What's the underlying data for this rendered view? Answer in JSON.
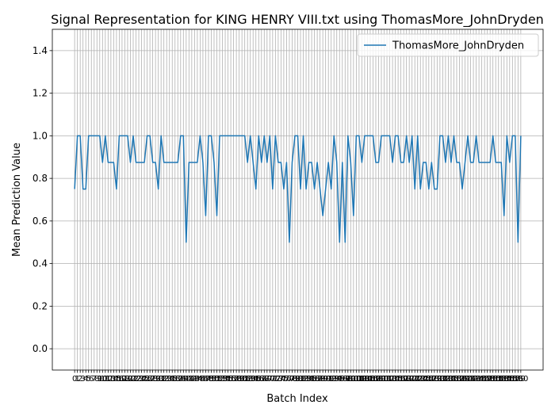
{
  "chart_data": {
    "type": "line",
    "title": "Signal Representation for KING HENRY VIII.txt using ThomasMore_JohnDryden",
    "xlabel": "Batch Index",
    "ylabel": "Mean Prediction Value",
    "x": [
      0,
      1,
      2,
      3,
      4,
      5,
      6,
      7,
      8,
      9,
      10,
      11,
      12,
      13,
      14,
      15,
      16,
      17,
      18,
      19,
      20,
      21,
      22,
      23,
      24,
      25,
      26,
      27,
      28,
      29,
      30,
      31,
      32,
      33,
      34,
      35,
      36,
      37,
      38,
      39,
      40,
      41,
      42,
      43,
      44,
      45,
      46,
      47,
      48,
      49,
      50,
      51,
      52,
      53,
      54,
      55,
      56,
      57,
      58,
      59,
      60,
      61,
      62,
      63,
      64,
      65,
      66,
      67,
      68,
      69,
      70,
      71,
      72,
      73,
      74,
      75,
      76,
      77,
      78,
      79,
      80,
      81,
      82,
      83,
      84,
      85,
      86,
      87,
      88,
      89,
      90,
      91,
      92,
      93,
      94,
      95,
      96,
      97,
      98,
      99,
      100,
      101,
      102,
      103,
      104,
      105,
      106,
      107,
      108,
      109,
      110,
      111,
      112,
      113,
      114,
      115,
      116,
      117,
      118,
      119,
      120,
      121,
      122,
      123,
      124,
      125,
      126,
      127,
      128,
      129,
      130,
      131,
      132,
      133,
      134,
      135,
      136,
      137,
      138,
      139,
      140,
      141,
      142,
      143,
      144,
      145,
      146,
      147,
      148,
      149,
      150,
      151,
      152,
      153,
      154,
      155,
      156,
      157,
      158,
      159,
      160
    ],
    "xticks": [
      0,
      1,
      2,
      3,
      4,
      5,
      6,
      7,
      8,
      9,
      10,
      11,
      12,
      13,
      14,
      15,
      16,
      17,
      18,
      19,
      20,
      21,
      22,
      23,
      24,
      25,
      26,
      27,
      28,
      29,
      30,
      31,
      32,
      33,
      34,
      35,
      36,
      37,
      38,
      39,
      40,
      41,
      42,
      43,
      44,
      45,
      46,
      47,
      48,
      49,
      50,
      51,
      52,
      53,
      54,
      55,
      56,
      57,
      58,
      59,
      60,
      61,
      62,
      63,
      64,
      65,
      66,
      67,
      68,
      69,
      70,
      71,
      72,
      73,
      74,
      75,
      76,
      77,
      78,
      79,
      80,
      81,
      82,
      83,
      84,
      85,
      86,
      87,
      88,
      89,
      90,
      91,
      92,
      93,
      94,
      95,
      96,
      97,
      98,
      99,
      100,
      101,
      102,
      103,
      104,
      105,
      106,
      107,
      108,
      109,
      110,
      111,
      112,
      113,
      114,
      115,
      116,
      117,
      118,
      119,
      120,
      121,
      122,
      123,
      124,
      125,
      126,
      127,
      128,
      129,
      130,
      131,
      132,
      133,
      134,
      135,
      136,
      137,
      138,
      139,
      140,
      141,
      142,
      143,
      144,
      145,
      146,
      147,
      148,
      149,
      150,
      151,
      152,
      153,
      154,
      155,
      156,
      157,
      158,
      159,
      160
    ],
    "xlim": [
      -8,
      168
    ],
    "ylim": [
      -0.1,
      1.5
    ],
    "yticks": [
      {
        "value": 0,
        "label": "0.0"
      },
      {
        "value": 0.2,
        "label": "0.2"
      },
      {
        "value": 0.4,
        "label": "0.4"
      },
      {
        "value": 0.6,
        "label": "0.6"
      },
      {
        "value": 0.8,
        "label": "0.8"
      },
      {
        "value": 1,
        "label": "1.0"
      },
      {
        "value": 1.2,
        "label": "1.2"
      },
      {
        "value": 1.4,
        "label": "1.4"
      }
    ],
    "grid": true,
    "legend": "upper right",
    "series": [
      {
        "name": "ThomasMore_JohnDryden",
        "color": "#1f77b4",
        "values": [
          0.75,
          1,
          1,
          0.75,
          0.75,
          1,
          1,
          1,
          1,
          1,
          0.875,
          1,
          0.875,
          0.875,
          0.875,
          0.75,
          1,
          1,
          1,
          1,
          0.875,
          1,
          0.875,
          0.875,
          0.875,
          0.875,
          1,
          1,
          0.875,
          0.875,
          0.75,
          1,
          0.875,
          0.875,
          0.875,
          0.875,
          0.875,
          0.875,
          1,
          1,
          0.5,
          0.875,
          0.875,
          0.875,
          0.875,
          1,
          0.875,
          0.625,
          1,
          1,
          0.875,
          0.625,
          1,
          1,
          1,
          1,
          1,
          1,
          1,
          1,
          1,
          1,
          0.875,
          1,
          0.875,
          0.75,
          1,
          0.875,
          1,
          0.875,
          1,
          0.75,
          1,
          0.875,
          0.875,
          0.75,
          0.875,
          0.5,
          0.875,
          1,
          1,
          0.75,
          1,
          0.75,
          0.875,
          0.875,
          0.75,
          0.875,
          0.75,
          0.625,
          0.75,
          0.875,
          0.75,
          1,
          0.875,
          0.5,
          0.875,
          0.5,
          1,
          0.875,
          0.625,
          1,
          1,
          0.875,
          1,
          1,
          1,
          1,
          0.875,
          0.875,
          1,
          1,
          1,
          1,
          0.875,
          1,
          1,
          0.875,
          0.875,
          1,
          0.875,
          1,
          0.75,
          1,
          0.75,
          0.875,
          0.875,
          0.75,
          0.875,
          0.75,
          0.75,
          1,
          1,
          0.875,
          1,
          0.875,
          1,
          0.875,
          0.875,
          0.75,
          0.875,
          1,
          0.875,
          0.875,
          1,
          0.875,
          0.875,
          0.875,
          0.875,
          0.875,
          1,
          0.875,
          0.875,
          0.875,
          0.625,
          1,
          0.875,
          1,
          1,
          0.5,
          1
        ]
      }
    ]
  }
}
